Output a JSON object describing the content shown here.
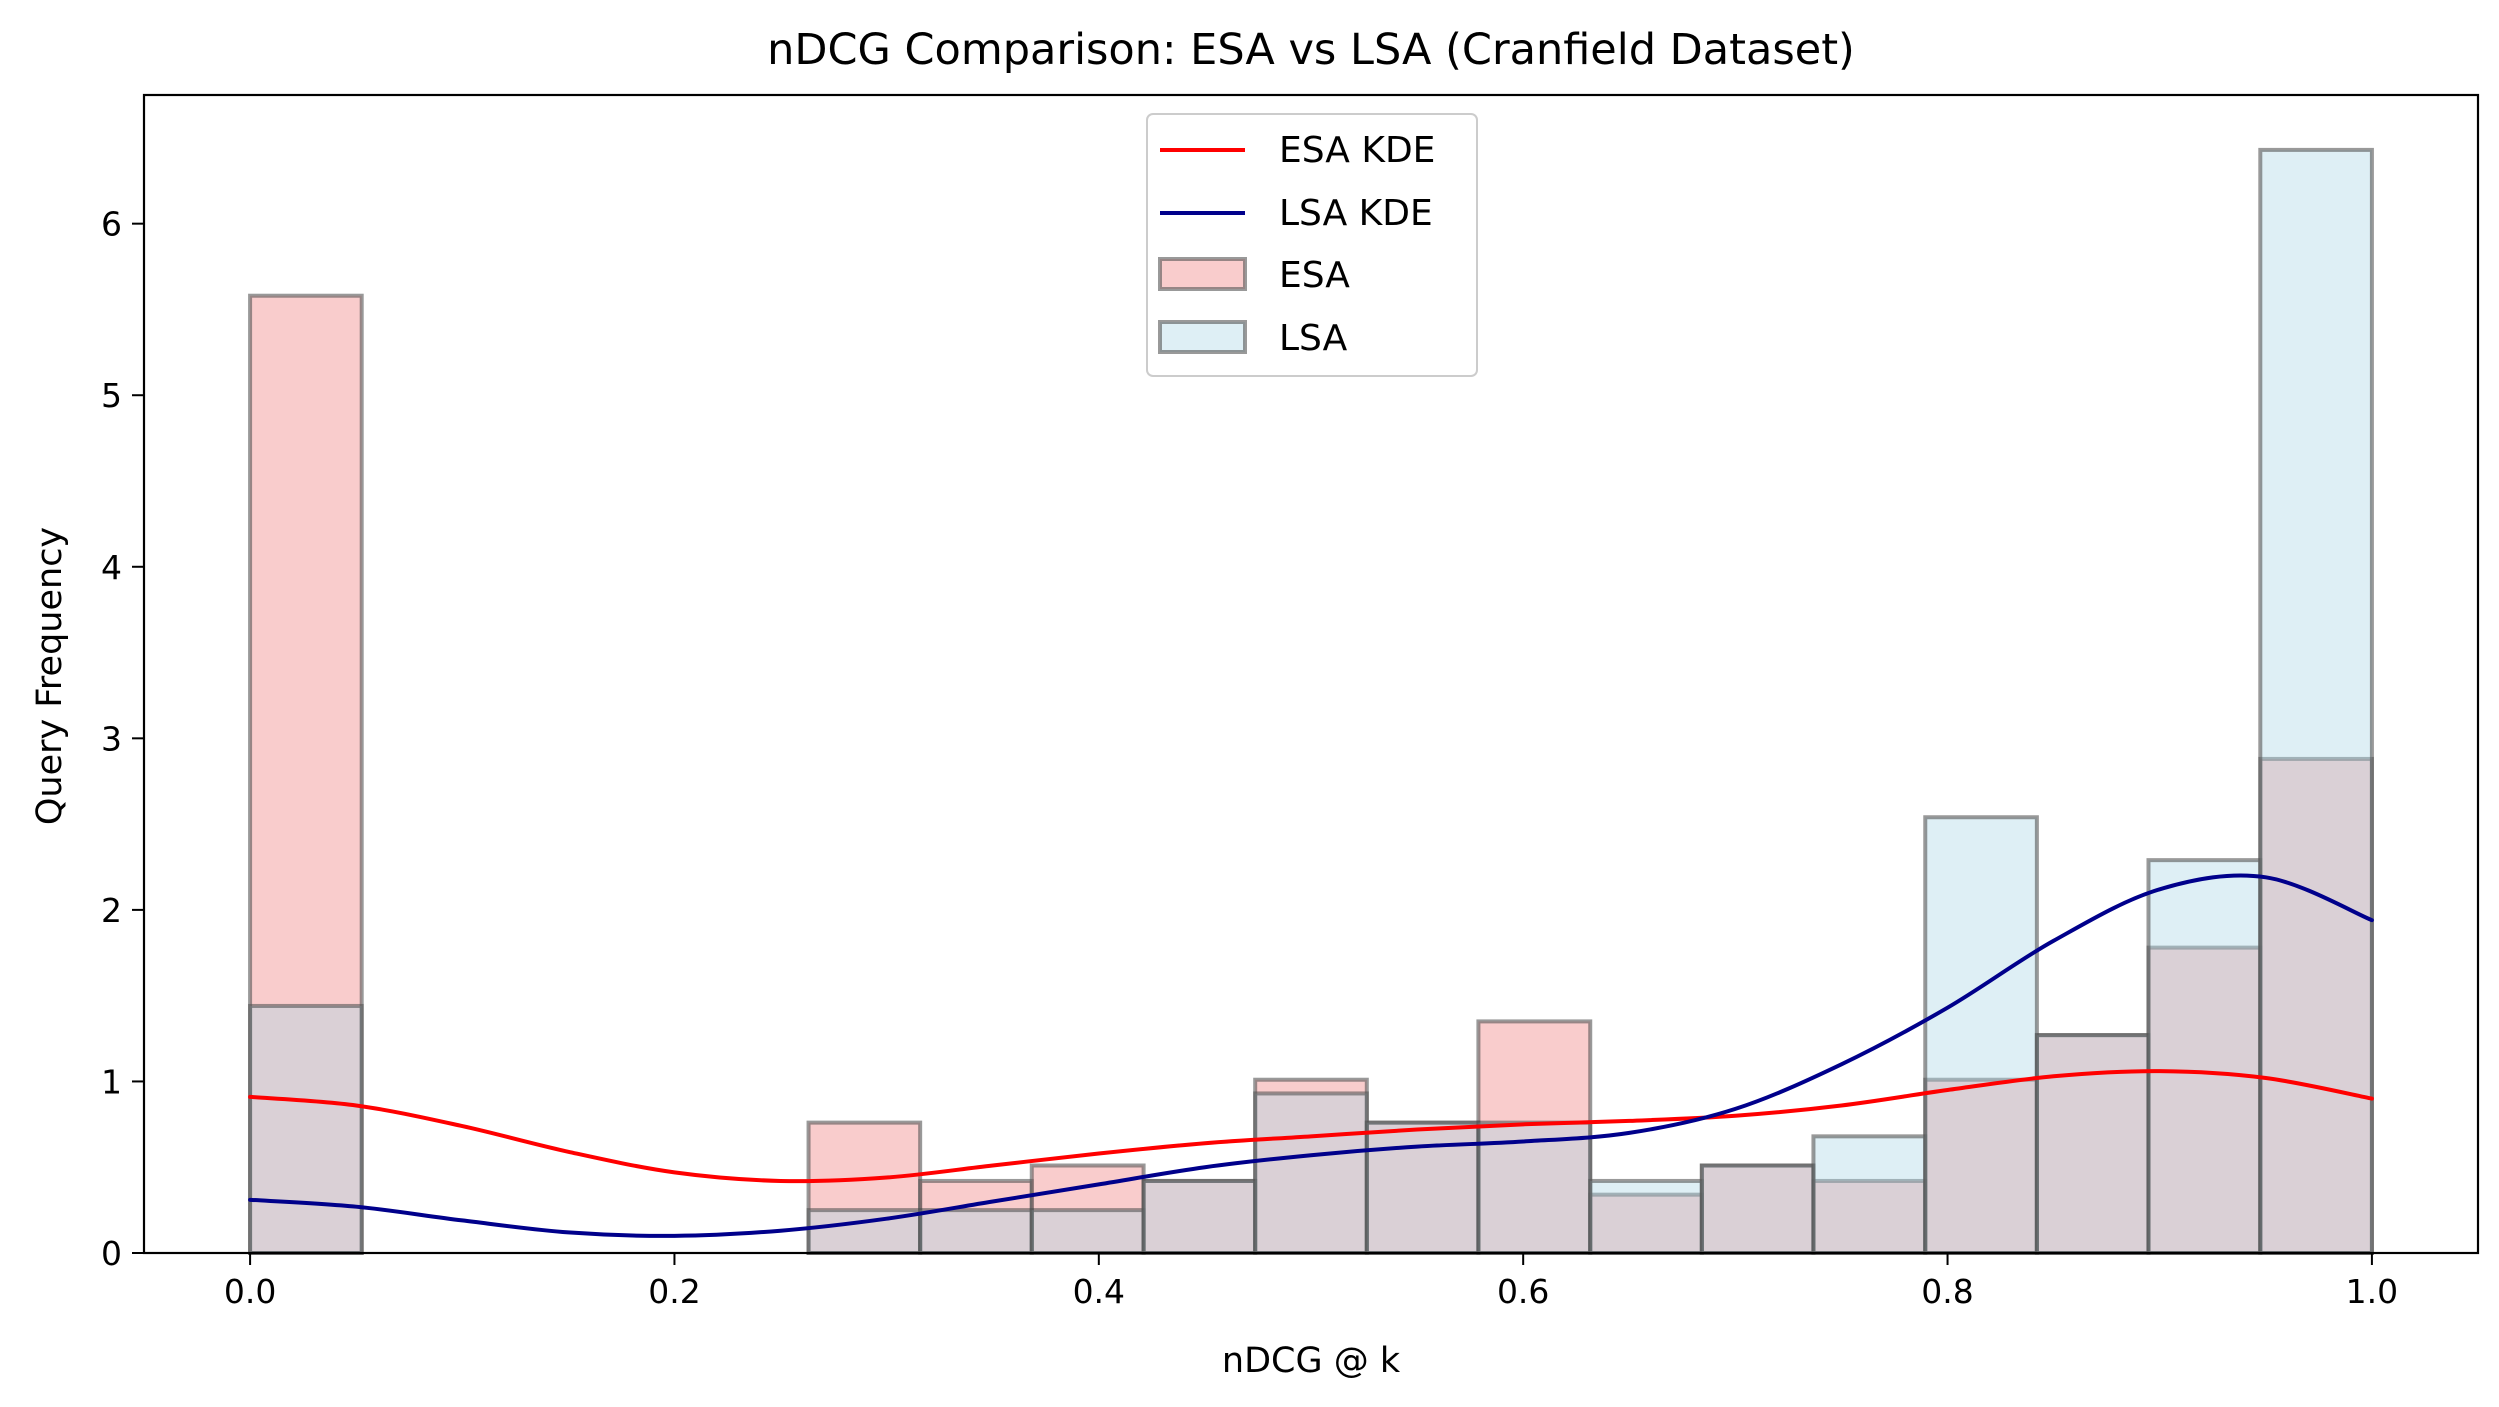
{
  "chart_data": {
    "type": "histogram",
    "title": "nDCG Comparison: ESA vs LSA (Cranfield Dataset)",
    "xlabel": "nDCG @ k",
    "ylabel": "Query Frequency",
    "xlim": [
      -0.05,
      1.05
    ],
    "ylim": [
      0,
      6.75
    ],
    "xticks": [
      0.0,
      0.2,
      0.4,
      0.6,
      0.8,
      1.0
    ],
    "xtick_labels": [
      "0.0",
      "0.2",
      "0.4",
      "0.6",
      "0.8",
      "1.0"
    ],
    "yticks": [
      0,
      1,
      2,
      3,
      4,
      5,
      6
    ],
    "ytick_labels": [
      "0",
      "1",
      "2",
      "3",
      "4",
      "5",
      "6"
    ],
    "grid": false,
    "legend_position": "top-center",
    "bin_edges": [
      0.0,
      0.0526,
      0.1053,
      0.1579,
      0.2105,
      0.2632,
      0.3158,
      0.3684,
      0.4211,
      0.4737,
      0.5263,
      0.5789,
      0.6316,
      0.6842,
      0.7368,
      0.7895,
      0.8421,
      0.8947,
      0.9474,
      1.0
    ],
    "series": [
      {
        "name": "ESA",
        "kind": "histogram",
        "color": "#f08080",
        "opacity": 0.4,
        "values": [
          5.58,
          0,
          0,
          0,
          0,
          0.76,
          0.42,
          0.51,
          0.42,
          1.01,
          0.76,
          1.35,
          0.34,
          0.51,
          0.42,
          1.01,
          1.27,
          1.78,
          2.88
        ]
      },
      {
        "name": "LSA",
        "kind": "histogram",
        "color": "#add8e6",
        "opacity": 0.4,
        "values": [
          1.44,
          0,
          0,
          0,
          0,
          0.25,
          0.25,
          0.25,
          0.42,
          0.93,
          0.76,
          0.76,
          0.42,
          0.51,
          0.68,
          2.54,
          1.27,
          2.29,
          6.43
        ]
      },
      {
        "name": "ESA KDE",
        "kind": "line",
        "color": "#ff0000",
        "x": [
          0.0,
          0.05,
          0.1,
          0.15,
          0.2,
          0.25,
          0.3,
          0.35,
          0.4,
          0.45,
          0.5,
          0.55,
          0.6,
          0.65,
          0.7,
          0.75,
          0.8,
          0.85,
          0.9,
          0.95,
          1.0
        ],
        "y": [
          0.91,
          0.86,
          0.74,
          0.59,
          0.47,
          0.42,
          0.44,
          0.51,
          0.58,
          0.64,
          0.68,
          0.72,
          0.75,
          0.77,
          0.8,
          0.86,
          0.95,
          1.03,
          1.06,
          1.02,
          0.9
        ]
      },
      {
        "name": "LSA KDE",
        "kind": "line",
        "color": "#00008b",
        "x": [
          0.0,
          0.05,
          0.1,
          0.15,
          0.2,
          0.25,
          0.3,
          0.35,
          0.4,
          0.45,
          0.5,
          0.55,
          0.6,
          0.65,
          0.7,
          0.75,
          0.8,
          0.85,
          0.9,
          0.95,
          1.0
        ],
        "y": [
          0.31,
          0.27,
          0.19,
          0.12,
          0.1,
          0.13,
          0.2,
          0.3,
          0.4,
          0.5,
          0.57,
          0.62,
          0.65,
          0.7,
          0.84,
          1.1,
          1.43,
          1.82,
          2.12,
          2.19,
          1.94
        ]
      }
    ],
    "legend": [
      "ESA KDE",
      "LSA KDE",
      "ESA",
      "LSA"
    ],
    "bar_edge_color": "#555555"
  }
}
